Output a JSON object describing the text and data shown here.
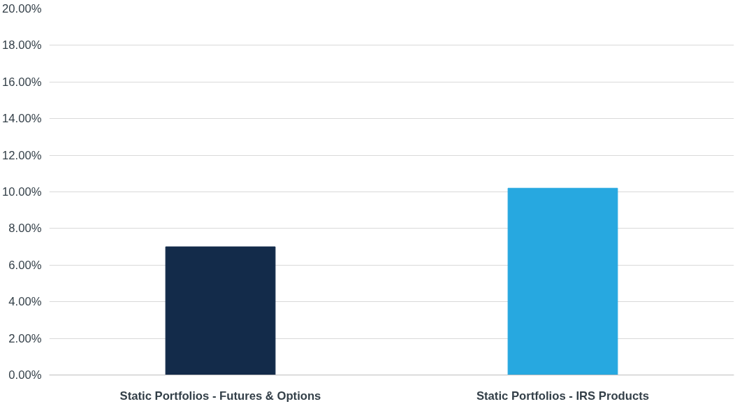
{
  "chart_data": {
    "type": "bar",
    "categories": [
      "Static Portfolios - Futures & Options",
      "Static Portfolios - IRS Products"
    ],
    "values": [
      7.0,
      10.2
    ],
    "colors": [
      "#132b4a",
      "#27a8e0"
    ],
    "ylim": [
      0,
      20
    ],
    "yticks": [
      {
        "value": 0,
        "label": "0.00%"
      },
      {
        "value": 2,
        "label": "2.00%"
      },
      {
        "value": 4,
        "label": "4.00%"
      },
      {
        "value": 6,
        "label": "6.00%"
      },
      {
        "value": 8,
        "label": "8.00%"
      },
      {
        "value": 10,
        "label": "10.00%"
      },
      {
        "value": 12,
        "label": "12.00%"
      },
      {
        "value": 14,
        "label": "14.00%"
      },
      {
        "value": 16,
        "label": "16.00%"
      },
      {
        "value": 18,
        "label": "18.00%"
      },
      {
        "value": 20,
        "label": "20.00%"
      }
    ],
    "grid": "y"
  }
}
